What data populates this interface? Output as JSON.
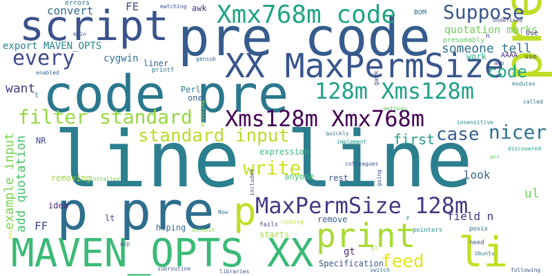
{
  "words": [
    {
      "text": "line line",
      "color": "#2c7f8e"
    },
    {
      "text": "pre code",
      "color": "#365c8d"
    },
    {
      "text": "code pre",
      "color": "#2b788e"
    },
    {
      "text": "script",
      "color": "#3b528b"
    },
    {
      "text": "prep",
      "color": "#bddf26"
    },
    {
      "text": "p pre",
      "color": "#2e6e8e"
    },
    {
      "text": "MAVEN_OPTS XX",
      "color": "#3aba76"
    },
    {
      "text": "XX MaxPermSize",
      "color": "#39568c"
    },
    {
      "text": "Xmx768m code",
      "color": "#20a386"
    },
    {
      "text": "Xms128m Xmx768m",
      "color": "#440154"
    },
    {
      "text": "MaxPermSize 128m",
      "color": "#453781"
    },
    {
      "text": "print",
      "color": "#a8db34"
    },
    {
      "text": "li",
      "color": "#c2df23"
    },
    {
      "text": "p",
      "color": "#bddf26"
    },
    {
      "text": "128m Xms128m",
      "color": "#1fa088"
    },
    {
      "text": "Suppose",
      "color": "#39558c"
    },
    {
      "text": "every",
      "color": "#3e4989"
    },
    {
      "text": "filter standard",
      "color": "#95d840"
    },
    {
      "text": "standard input",
      "color": "#b5de2b"
    },
    {
      "text": "write",
      "color": "#cae11f"
    },
    {
      "text": "case",
      "color": "#34608d"
    },
    {
      "text": "nicer",
      "color": "#2d708e"
    },
    {
      "text": "code",
      "color": "#22a785"
    },
    {
      "text": "feed",
      "color": "#e5e419"
    },
    {
      "text": "someone tell",
      "color": "#2e6f8e"
    },
    {
      "text": "example input",
      "color": "#7ad151"
    },
    {
      "text": "add quotation",
      "color": "#4ac16d"
    },
    {
      "text": "convert",
      "color": "#31688e"
    },
    {
      "text": "FE",
      "color": "#3b528b"
    },
    {
      "text": "awk",
      "color": "#453781"
    },
    {
      "text": "quotation marks",
      "color": "#6ccd5a"
    },
    {
      "text": "export MAVEN_OPTS",
      "color": "#26828e"
    },
    {
      "text": "cygwin",
      "color": "#2e6e8e"
    },
    {
      "text": "liner",
      "color": "#32648e"
    },
    {
      "text": "want",
      "color": "#453882"
    },
    {
      "text": "first",
      "color": "#1f998a"
    },
    {
      "text": "field n",
      "color": "#46327e"
    },
    {
      "text": "ul",
      "color": "#6ece58"
    },
    {
      "text": "look",
      "color": "#33638d"
    },
    {
      "text": "FF",
      "color": "#3e4a89"
    },
    {
      "text": "gt",
      "color": "#482576"
    },
    {
      "text": "Perl",
      "color": "#2a788e"
    },
    {
      "text": "one",
      "color": "#355f8d"
    },
    {
      "text": "remove",
      "color": "#38588c"
    },
    {
      "text": "hoping",
      "color": "#31688e"
    },
    {
      "text": "starts",
      "color": "#9dd93b"
    },
    {
      "text": "Specification",
      "color": "#39558c"
    },
    {
      "text": "rest",
      "color": "#3a548c"
    },
    {
      "text": "anyone",
      "color": "#48c16e"
    },
    {
      "text": "expression",
      "color": "#37b878"
    },
    {
      "text": "removing",
      "color": "#9dd93b"
    },
    {
      "text": "lt",
      "color": "#3e4989"
    },
    {
      "text": "idea",
      "color": "#482878"
    },
    {
      "text": "NR",
      "color": "#3e4989"
    },
    {
      "text": "t",
      "color": "#2c718e"
    },
    {
      "text": "work",
      "color": "#26ad81"
    },
    {
      "text": "use",
      "color": "#3e4a89"
    },
    {
      "text": "Use",
      "color": "#46337f"
    },
    {
      "text": "errors",
      "color": "#2f6b8e"
    },
    {
      "text": "matching",
      "color": "#3e4c8a"
    },
    {
      "text": "BOM",
      "color": "#2e6f8e"
    },
    {
      "text": "Undefined",
      "color": "#414487"
    },
    {
      "text": "main",
      "color": "#38598c"
    },
    {
      "text": "n",
      "color": "#3f4788"
    },
    {
      "text": "presumably",
      "color": "#5ec962"
    },
    {
      "text": "AAAA",
      "color": "#472d7b"
    },
    {
      "text": "amp",
      "color": "#414487"
    },
    {
      "text": "enabled",
      "color": "#33638d"
    },
    {
      "text": "printf",
      "color": "#2c728e"
    },
    {
      "text": "gensub",
      "color": "#30688e"
    },
    {
      "text": "modules",
      "color": "#2a778e"
    },
    {
      "text": "called",
      "color": "#2d708e"
    },
    {
      "text": "methods",
      "color": "#5ec962"
    },
    {
      "text": "insensitive",
      "color": "#24878e"
    },
    {
      "text": "existing",
      "color": "#9dd93b"
    },
    {
      "text": "quickly",
      "color": "#2c738e"
    },
    {
      "text": "implement",
      "color": "#1f948c"
    },
    {
      "text": "colleagues",
      "color": "#3b528b"
    },
    {
      "text": "arr",
      "color": "#5ec962"
    },
    {
      "text": "discovered",
      "color": "#1f9e89"
    },
    {
      "text": "gawk",
      "color": "#3e4c8a"
    },
    {
      "text": "installed",
      "color": "#6ece58"
    },
    {
      "text": "included",
      "color": "#3e4a89"
    },
    {
      "text": "going",
      "color": "#3b528b"
    },
    {
      "text": "posix",
      "color": "#2e6e8e"
    },
    {
      "text": "pointers",
      "color": "#21918c"
    },
    {
      "text": "need",
      "color": "#3d4e8a"
    },
    {
      "text": "Ubuntu",
      "color": "#2a788e"
    },
    {
      "text": "following",
      "color": "#3b528b"
    },
    {
      "text": "fails",
      "color": "#3e4a89"
    },
    {
      "text": "running",
      "color": "#bddf26"
    },
    {
      "text": "switch",
      "color": "#2f6b8e"
    },
    {
      "text": "pl",
      "color": "#9dd93b"
    },
    {
      "text": "libraries",
      "color": "#3b528b"
    },
    {
      "text": "subroutine",
      "color": "#39568c"
    },
    {
      "text": "a2p",
      "color": "#3a548c"
    },
    {
      "text": "Now",
      "color": "#2c728e"
    },
    {
      "text": "without",
      "color": "#86d549"
    },
    {
      "text": "pass",
      "color": "#dde318"
    },
    {
      "text": "z",
      "color": "#2a788e"
    }
  ]
}
